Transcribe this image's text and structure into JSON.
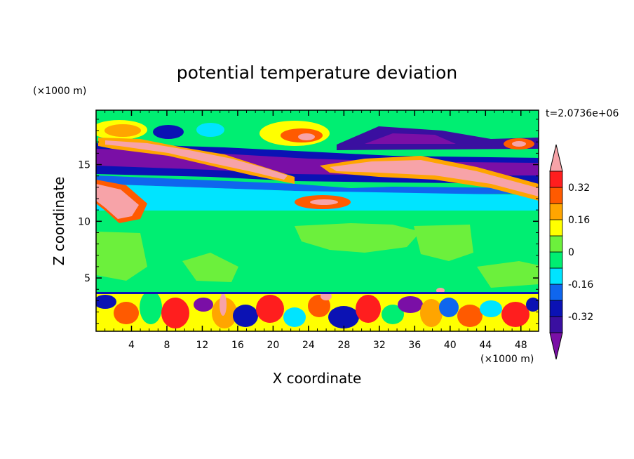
{
  "chart_data": {
    "type": "heatmap",
    "title": "potential temperature deviation",
    "xlabel": "X coordinate",
    "ylabel": "Z coordinate",
    "x_unit": "(×1000 m)",
    "y_unit": "(×1000 m)",
    "time_label": "t=2.0736e+06",
    "xlim": [
      0,
      50
    ],
    "ylim": [
      0.3,
      19.8
    ],
    "x_ticks": [
      4,
      8,
      12,
      16,
      20,
      24,
      28,
      32,
      36,
      40,
      44,
      48
    ],
    "y_ticks": [
      5,
      10,
      15
    ],
    "colorbar": {
      "levels": [
        -0.4,
        -0.32,
        -0.24,
        -0.16,
        -0.08,
        0,
        0.08,
        0.16,
        0.24,
        0.32,
        0.4
      ],
      "labels": [
        "0.32",
        "0.16",
        "0",
        "-0.16",
        "-0.32"
      ],
      "label_values": [
        0.32,
        0.16,
        0,
        -0.16,
        -0.32
      ],
      "colors_bottom_to_top": [
        "#7a0fa6",
        "#3a0fa0",
        "#0b12b4",
        "#0f66ee",
        "#00e4ff",
        "#00ee72",
        "#6cf03c",
        "#ffff00",
        "#ffa500",
        "#ff5a00",
        "#ff1e1e",
        "#f7a3a8"
      ],
      "under_color": "#7a0fa6",
      "over_color": "#f7a3a8"
    }
  }
}
